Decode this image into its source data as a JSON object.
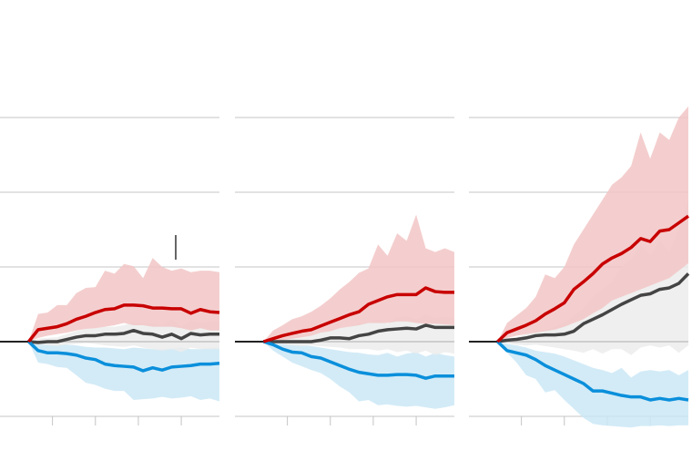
{
  "chart_data": [
    {
      "type": "line",
      "x": [
        0,
        1,
        2,
        3,
        4,
        5,
        6,
        7,
        8,
        9,
        10,
        11,
        12,
        13,
        14,
        15,
        16,
        17,
        18,
        19,
        20
      ],
      "xlim": [
        -3,
        20
      ],
      "xticks": [
        2.5,
        7,
        11.5,
        16
      ],
      "ylim": [
        -1.2,
        3.4
      ],
      "yticks": [
        -1,
        0,
        1,
        2,
        3
      ],
      "grid": true,
      "series": [
        {
          "color": "#0a8fdb",
          "band_color": "#cbe8f6",
          "values": [
            0,
            -0.12,
            -0.15,
            -0.15,
            -0.16,
            -0.18,
            -0.22,
            -0.24,
            -0.3,
            -0.32,
            -0.33,
            -0.34,
            -0.39,
            -0.35,
            -0.38,
            -0.34,
            -0.33,
            -0.32,
            -0.3,
            -0.3,
            -0.29
          ],
          "upper": [
            0,
            -0.02,
            -0.03,
            -0.04,
            -0.04,
            -0.05,
            -0.07,
            -0.08,
            -0.08,
            -0.09,
            -0.1,
            -0.08,
            -0.09,
            -0.1,
            -0.1,
            -0.09,
            -0.08,
            -0.1,
            -0.1,
            -0.08,
            -0.08
          ],
          "lower": [
            0,
            -0.28,
            -0.3,
            -0.34,
            -0.35,
            -0.45,
            -0.55,
            -0.58,
            -0.63,
            -0.66,
            -0.66,
            -0.78,
            -0.77,
            -0.76,
            -0.74,
            -0.76,
            -0.75,
            -0.73,
            -0.78,
            -0.76,
            -0.8
          ]
        },
        {
          "color": "#444444",
          "band_color": "#ececec",
          "values": [
            0,
            -0.01,
            0,
            0,
            0.03,
            0.06,
            0.08,
            0.08,
            0.1,
            0.1,
            0.11,
            0.15,
            0.11,
            0.1,
            0.06,
            0.1,
            0.04,
            0.11,
            0.09,
            0.1,
            0.1
          ],
          "upper": [
            0,
            0.04,
            0.05,
            0.06,
            0.1,
            0.14,
            0.17,
            0.18,
            0.2,
            0.2,
            0.22,
            0.26,
            0.24,
            0.25,
            0.22,
            0.3,
            0.2,
            0.28,
            0.25,
            0.27,
            0.27
          ],
          "lower": [
            0,
            -0.04,
            -0.05,
            -0.06,
            -0.04,
            -0.03,
            -0.02,
            -0.03,
            -0.05,
            -0.06,
            -0.07,
            -0.05,
            -0.08,
            -0.1,
            -0.12,
            -0.1,
            -0.14,
            -0.08,
            -0.1,
            -0.1,
            -0.1
          ]
        },
        {
          "color": "#c80000",
          "band_color": "#f2c6c6",
          "values": [
            0,
            0.16,
            0.18,
            0.2,
            0.24,
            0.3,
            0.34,
            0.39,
            0.43,
            0.44,
            0.49,
            0.49,
            0.48,
            0.45,
            0.45,
            0.44,
            0.44,
            0.38,
            0.43,
            0.4,
            0.39
          ],
          "upper": [
            0,
            0.37,
            0.39,
            0.49,
            0.49,
            0.65,
            0.72,
            0.73,
            0.95,
            0.91,
            1.04,
            1.01,
            0.85,
            1.12,
            1,
            0.95,
            0.98,
            0.93,
            0.95,
            0.95,
            0.93
          ],
          "lower": [
            0,
            0.05,
            0.08,
            0.1,
            0.12,
            0.15,
            0.17,
            0.18,
            0.2,
            0.22,
            0.25,
            0.22,
            0.22,
            0.2,
            0.2,
            0.2,
            0.18,
            0.15,
            0.18,
            0.15,
            0.15
          ]
        }
      ]
    },
    {
      "type": "line",
      "x": [
        0,
        1,
        2,
        3,
        4,
        5,
        6,
        7,
        8,
        9,
        10,
        11,
        12,
        13,
        14,
        15,
        16,
        17,
        18,
        19,
        20
      ],
      "xlim": [
        -3,
        20
      ],
      "xticks": [
        2.5,
        7,
        11.5,
        16
      ],
      "ylim": [
        -1.2,
        3.4
      ],
      "yticks": [
        -1,
        0,
        1,
        2,
        3
      ],
      "grid": true,
      "series": [
        {
          "color": "#0a8fdb",
          "band_color": "#cbe8f6",
          "values": [
            0,
            -0.04,
            -0.1,
            -0.14,
            -0.15,
            -0.2,
            -0.22,
            -0.27,
            -0.32,
            -0.37,
            -0.41,
            -0.43,
            -0.45,
            -0.45,
            -0.44,
            -0.44,
            -0.45,
            -0.49,
            -0.46,
            -0.46,
            -0.46
          ],
          "upper": [
            0,
            -0.02,
            -0.03,
            -0.04,
            -0.05,
            -0.06,
            -0.08,
            -0.1,
            -0.12,
            -0.14,
            -0.15,
            -0.17,
            -0.18,
            -0.15,
            -0.2,
            -0.16,
            -0.14,
            -0.2,
            -0.15,
            -0.18,
            -0.2
          ],
          "lower": [
            0,
            -0.12,
            -0.2,
            -0.28,
            -0.33,
            -0.38,
            -0.42,
            -0.5,
            -0.6,
            -0.68,
            -0.8,
            -0.78,
            -0.85,
            -0.84,
            -0.86,
            -0.87,
            -0.86,
            -0.88,
            -0.9,
            -0.88,
            -0.85
          ]
        },
        {
          "color": "#444444",
          "band_color": "#ececec",
          "values": [
            0,
            0,
            0,
            0,
            0,
            0,
            0.02,
            0.05,
            0.05,
            0.04,
            0.08,
            0.1,
            0.14,
            0.16,
            0.17,
            0.18,
            0.17,
            0.22,
            0.19,
            0.19,
            0.19
          ],
          "upper": [
            0,
            0.03,
            0.05,
            0.06,
            0.08,
            0.1,
            0.12,
            0.16,
            0.18,
            0.2,
            0.24,
            0.26,
            0.3,
            0.24,
            0.33,
            0.34,
            0.3,
            0.36,
            0.32,
            0.33,
            0.32
          ],
          "lower": [
            0,
            -0.03,
            -0.04,
            -0.05,
            -0.06,
            -0.05,
            -0.06,
            -0.07,
            -0.08,
            -0.1,
            -0.1,
            -0.1,
            -0.12,
            -0.1,
            -0.14,
            -0.12,
            -0.16,
            -0.12,
            -0.18,
            -0.14,
            -0.16
          ]
        },
        {
          "color": "#c80000",
          "band_color": "#f2c6c6",
          "values": [
            0,
            0.04,
            0.08,
            0.11,
            0.14,
            0.16,
            0.21,
            0.26,
            0.31,
            0.36,
            0.4,
            0.5,
            0.55,
            0.6,
            0.63,
            0.63,
            0.63,
            0.72,
            0.67,
            0.66,
            0.66
          ],
          "upper": [
            0,
            0.15,
            0.22,
            0.3,
            0.34,
            0.4,
            0.48,
            0.58,
            0.7,
            0.8,
            0.92,
            0.98,
            1.3,
            1.15,
            1.45,
            1.35,
            1.7,
            1.25,
            1.2,
            1.25,
            1.2
          ],
          "lower": [
            0,
            0,
            0.02,
            0.04,
            0.06,
            0.08,
            0.12,
            0.14,
            0.18,
            0.2,
            0.22,
            0.25,
            0.25,
            0.25,
            0.27,
            0.27,
            0.25,
            0.24,
            0.24,
            0.23,
            0.22
          ]
        }
      ]
    },
    {
      "type": "line",
      "x": [
        0,
        1,
        2,
        3,
        4,
        5,
        6,
        7,
        8,
        9,
        10,
        11,
        12,
        13,
        14,
        15,
        16,
        17,
        18,
        19,
        20
      ],
      "xlim": [
        -3,
        20
      ],
      "xticks": [
        2.5,
        7,
        11.5,
        16
      ],
      "ylim": [
        -1.2,
        3.4
      ],
      "yticks": [
        -1,
        0,
        1,
        2,
        3
      ],
      "grid": true,
      "series": [
        {
          "color": "#0a8fdb",
          "band_color": "#cbe8f6",
          "values": [
            0,
            -0.12,
            -0.15,
            -0.18,
            -0.24,
            -0.32,
            -0.38,
            -0.44,
            -0.5,
            -0.56,
            -0.66,
            -0.66,
            -0.69,
            -0.72,
            -0.74,
            -0.74,
            -0.78,
            -0.76,
            -0.78,
            -0.76,
            -0.78
          ],
          "upper": [
            0,
            -0.03,
            -0.05,
            -0.08,
            -0.12,
            -0.14,
            -0.16,
            -0.2,
            -0.25,
            -0.3,
            -0.35,
            -0.38,
            -0.42,
            -0.35,
            -0.48,
            -0.4,
            -0.38,
            -0.4,
            -0.38,
            -0.45,
            -0.38
          ],
          "lower": [
            0,
            -0.15,
            -0.28,
            -0.45,
            -0.5,
            -0.68,
            -0.65,
            -0.78,
            -0.9,
            -1.02,
            -1.1,
            -1.12,
            -1.13,
            -1.14,
            -1.15,
            -1.13,
            -1.13,
            -1.12,
            -1.13,
            -1.12,
            -1.12
          ]
        },
        {
          "color": "#444444",
          "band_color": "#ececec",
          "values": [
            0,
            0.02,
            0.03,
            0.05,
            0.08,
            0.09,
            0.09,
            0.1,
            0.14,
            0.24,
            0.3,
            0.36,
            0.43,
            0.5,
            0.56,
            0.62,
            0.64,
            0.7,
            0.72,
            0.78,
            0.91
          ],
          "upper": [
            0,
            0.04,
            0.06,
            0.1,
            0.14,
            0.16,
            0.2,
            0.25,
            0.35,
            0.45,
            0.6,
            0.7,
            0.8,
            1,
            1.1,
            1.3,
            1.15,
            1.35,
            1.2,
            1.5,
            1.9
          ],
          "lower": [
            0,
            -0.02,
            -0.04,
            -0.05,
            -0.04,
            -0.06,
            -0.08,
            -0.1,
            -0.12,
            -0.15,
            -0.1,
            -0.16,
            -0.1,
            -0.1,
            -0.18,
            -0.08,
            -0.05,
            -0.08,
            -0.05,
            -0.15,
            -0.05
          ]
        },
        {
          "color": "#c80000",
          "band_color": "#f2c6c6",
          "values": [
            0,
            0.12,
            0.17,
            0.22,
            0.28,
            0.37,
            0.44,
            0.52,
            0.7,
            0.8,
            0.91,
            1.04,
            1.12,
            1.18,
            1.26,
            1.38,
            1.34,
            1.48,
            1.5,
            1.59,
            1.68
          ],
          "upper": [
            0,
            0.25,
            0.35,
            0.45,
            0.6,
            0.9,
            0.85,
            1,
            1.3,
            1.5,
            1.7,
            1.9,
            2.1,
            2.2,
            2.35,
            2.8,
            2.45,
            2.8,
            2.7,
            3,
            3.15
          ],
          "lower": [
            0,
            0.05,
            0.08,
            0.1,
            0.12,
            0.14,
            0.16,
            0.2,
            0.25,
            0.3,
            0.38,
            0.45,
            0.55,
            0.6,
            0.65,
            0.7,
            0.75,
            0.8,
            0.85,
            0.95,
            1.05
          ]
        }
      ]
    }
  ]
}
